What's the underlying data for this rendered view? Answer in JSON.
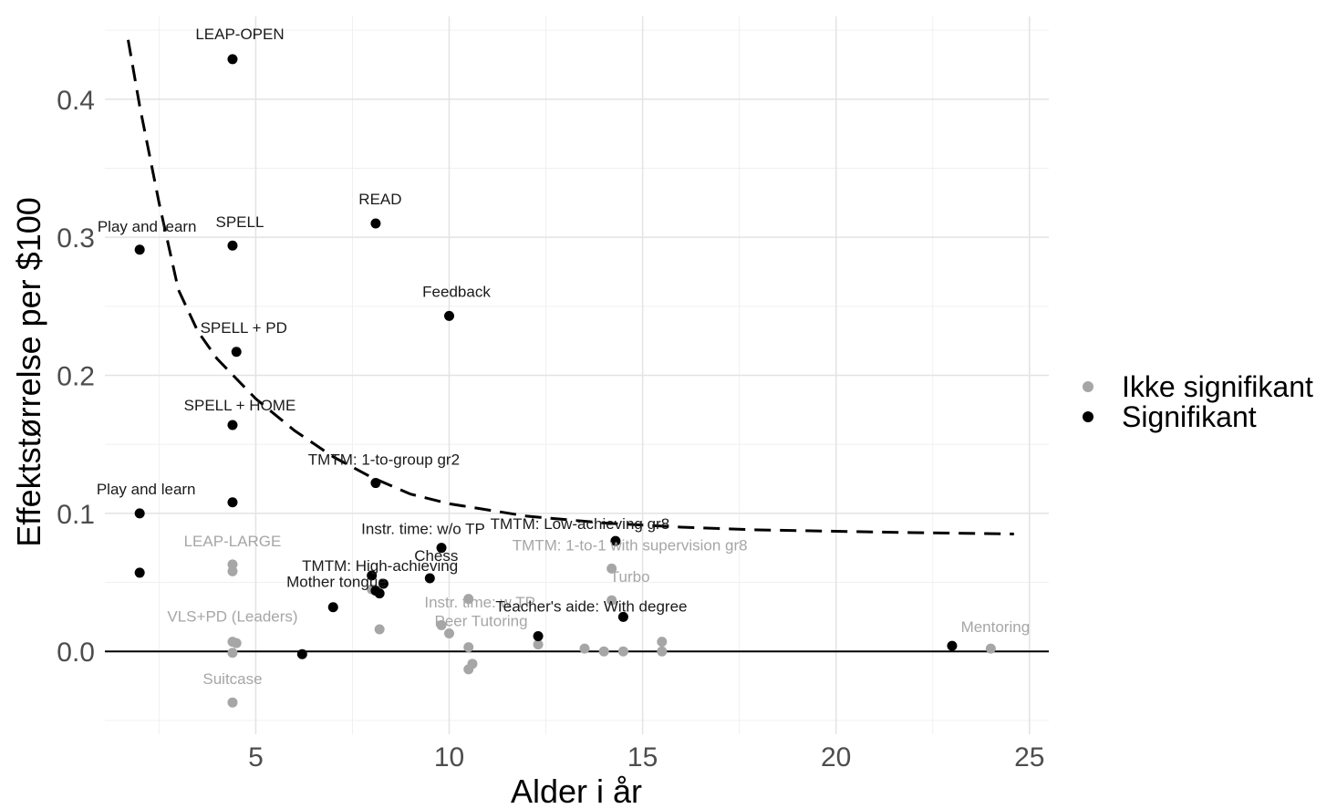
{
  "chart_data": {
    "type": "scatter",
    "title": "",
    "xlabel": "Alder i år",
    "ylabel": "Effektstørrelse per $100",
    "xlim": [
      1.1,
      25.5
    ],
    "ylim": [
      -0.06,
      0.46
    ],
    "x_ticks": [
      5,
      10,
      15,
      20,
      25
    ],
    "y_ticks": [
      0.0,
      0.1,
      0.2,
      0.3,
      0.4
    ],
    "grid": true,
    "legend_position": "right",
    "colors": {
      "Ikke signifikant": "#a6a6a6",
      "Signifikant": "#000000"
    },
    "series": [
      {
        "name": "Ikke signifikant",
        "points": [
          {
            "x": 4.4,
            "y": 0.063,
            "label": "LEAP-LARGE"
          },
          {
            "x": 4.4,
            "y": 0.058,
            "label": ""
          },
          {
            "x": 4.4,
            "y": 0.007,
            "label": "VLS+PD (Leaders)"
          },
          {
            "x": 4.5,
            "y": 0.006,
            "label": ""
          },
          {
            "x": 4.4,
            "y": -0.001,
            "label": ""
          },
          {
            "x": 4.4,
            "y": -0.037,
            "label": "Suitcase"
          },
          {
            "x": 8.0,
            "y": 0.045,
            "label": ""
          },
          {
            "x": 8.2,
            "y": 0.016,
            "label": "Instr. time: w TP"
          },
          {
            "x": 9.8,
            "y": 0.019,
            "label": ""
          },
          {
            "x": 10.0,
            "y": 0.013,
            "label": "Peer Tutoring"
          },
          {
            "x": 10.5,
            "y": 0.038,
            "label": ""
          },
          {
            "x": 10.5,
            "y": 0.003,
            "label": ""
          },
          {
            "x": 10.5,
            "y": -0.013,
            "label": ""
          },
          {
            "x": 10.6,
            "y": -0.009,
            "label": ""
          },
          {
            "x": 12.3,
            "y": 0.005,
            "label": ""
          },
          {
            "x": 13.5,
            "y": 0.002,
            "label": ""
          },
          {
            "x": 14.0,
            "y": 0.0,
            "label": ""
          },
          {
            "x": 14.2,
            "y": 0.06,
            "label": "TMTM: 1-to-1 with supervision gr8"
          },
          {
            "x": 14.2,
            "y": 0.037,
            "label": "Turbo"
          },
          {
            "x": 14.5,
            "y": 0.0,
            "label": ""
          },
          {
            "x": 15.5,
            "y": 0.007,
            "label": ""
          },
          {
            "x": 15.5,
            "y": 0.0,
            "label": ""
          },
          {
            "x": 24.0,
            "y": 0.002,
            "label": "Mentoring"
          }
        ]
      },
      {
        "name": "Signifikant",
        "points": [
          {
            "x": 4.4,
            "y": 0.429,
            "label": "LEAP-OPEN"
          },
          {
            "x": 2.0,
            "y": 0.291,
            "label": "Play and learn"
          },
          {
            "x": 4.4,
            "y": 0.294,
            "label": "SPELL"
          },
          {
            "x": 8.1,
            "y": 0.31,
            "label": "READ"
          },
          {
            "x": 10.0,
            "y": 0.243,
            "label": "Feedback"
          },
          {
            "x": 4.5,
            "y": 0.217,
            "label": "SPELL + PD"
          },
          {
            "x": 4.4,
            "y": 0.164,
            "label": "SPELL + HOME"
          },
          {
            "x": 8.1,
            "y": 0.122,
            "label": "TMTM: 1-to-group gr2"
          },
          {
            "x": 2.0,
            "y": 0.1,
            "label": "Play and learn"
          },
          {
            "x": 4.4,
            "y": 0.108,
            "label": ""
          },
          {
            "x": 9.8,
            "y": 0.075,
            "label": "Instr. time: w/o TP"
          },
          {
            "x": 14.3,
            "y": 0.08,
            "label": "TMTM: Low-achieving gr8"
          },
          {
            "x": 2.0,
            "y": 0.057,
            "label": ""
          },
          {
            "x": 9.5,
            "y": 0.053,
            "label": "Chess"
          },
          {
            "x": 8.0,
            "y": 0.055,
            "label": "TMTM: High-achieving"
          },
          {
            "x": 8.3,
            "y": 0.049,
            "label": ""
          },
          {
            "x": 8.1,
            "y": 0.044,
            "label": "Mother tongue"
          },
          {
            "x": 8.2,
            "y": 0.042,
            "label": ""
          },
          {
            "x": 7.0,
            "y": 0.032,
            "label": ""
          },
          {
            "x": 14.5,
            "y": 0.025,
            "label": "Teacher's aide: With degree"
          },
          {
            "x": 12.3,
            "y": 0.011,
            "label": ""
          },
          {
            "x": 6.2,
            "y": -0.002,
            "label": ""
          },
          {
            "x": 23.0,
            "y": 0.004,
            "label": ""
          }
        ]
      }
    ],
    "trend_line": {
      "style": "dashed",
      "x": [
        1.7,
        2.0,
        2.5,
        3.0,
        3.5,
        4.0,
        5.0,
        6.0,
        7.0,
        8.0,
        9.0,
        10.0,
        12.0,
        14.0,
        16.0,
        18.0,
        20.0,
        22.0,
        24.6
      ],
      "y": [
        0.443,
        0.395,
        0.325,
        0.262,
        0.232,
        0.212,
        0.183,
        0.16,
        0.141,
        0.126,
        0.114,
        0.107,
        0.098,
        0.093,
        0.09,
        0.088,
        0.087,
        0.086,
        0.085
      ]
    }
  }
}
